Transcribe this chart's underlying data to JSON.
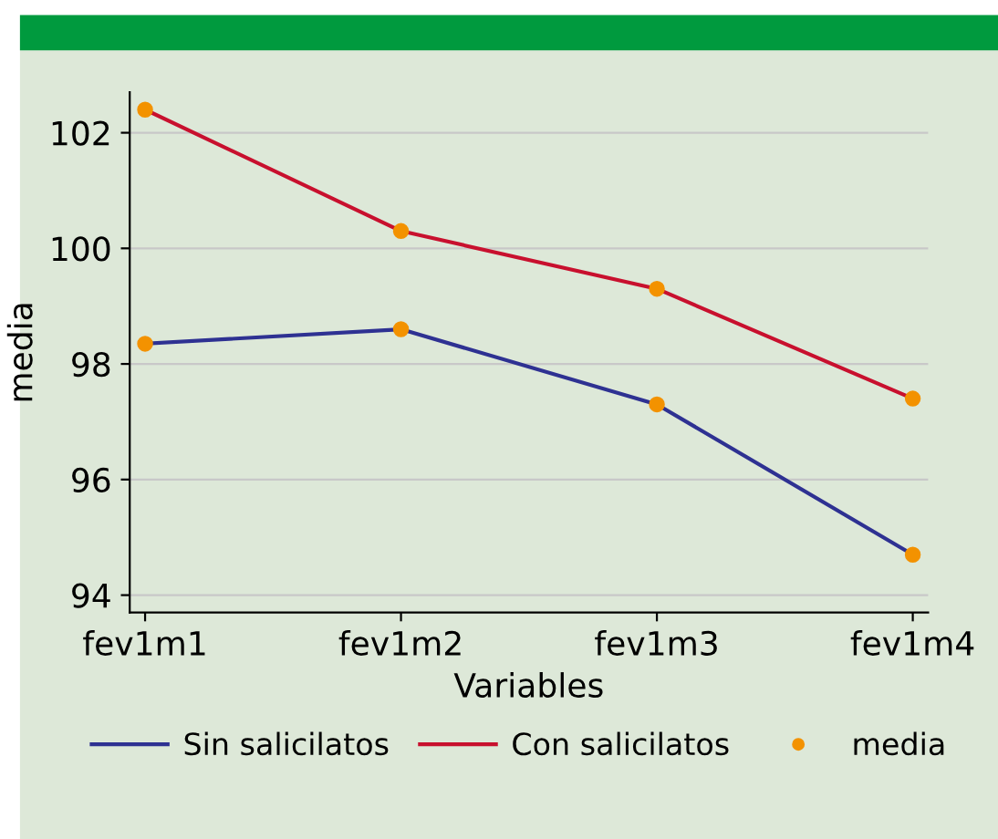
{
  "chart_data": {
    "type": "line",
    "xlabel": "Variables",
    "ylabel": "media",
    "categories": [
      "fev1m1",
      "fev1m2",
      "fev1m3",
      "fev1m4"
    ],
    "series": [
      {
        "name": "Sin salicilatos",
        "color": "#2e3192",
        "values": [
          98.35,
          98.6,
          97.3,
          94.7
        ]
      },
      {
        "name": "Con salicilatos",
        "color": "#c8102e",
        "values": [
          102.4,
          100.3,
          99.3,
          97.4
        ]
      },
      {
        "name": "media",
        "type": "scatter",
        "color": "#f39200",
        "marker": "circle",
        "x": [
          "fev1m1",
          "fev1m2",
          "fev1m3",
          "fev1m4",
          "fev1m1",
          "fev1m2",
          "fev1m3",
          "fev1m4"
        ],
        "values": [
          98.35,
          98.6,
          97.3,
          94.7,
          102.4,
          100.3,
          99.3,
          97.4
        ]
      }
    ],
    "ylim": [
      93.7,
      102.7
    ],
    "yticks": [
      94,
      96,
      98,
      100,
      102
    ],
    "grid": "y",
    "legend": "bottom",
    "marker": "none",
    "line_style": "solid"
  }
}
